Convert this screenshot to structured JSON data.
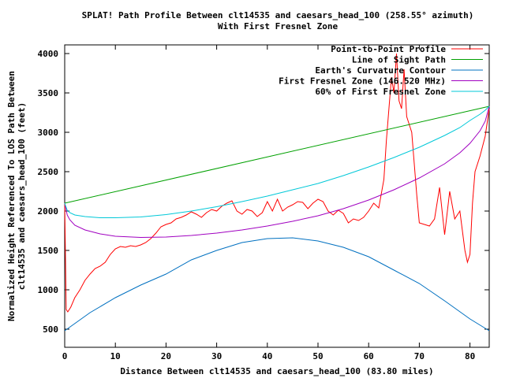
{
  "chart_data": {
    "type": "line",
    "title": "SPLAT! Path Profile Between clt14535 and caesars_head_100 (258.55° azimuth)",
    "subtitle": "With First Fresnel Zone",
    "xlabel": "Distance Between clt14535 and caesars_head_100 (83.80 miles)",
    "ylabel_line1": "Normalized Height Referenced To LOS Path Between",
    "ylabel_line2": "clt14535 and caesars_head_100 (feet)",
    "xlim": [
      0,
      83.8
    ],
    "ylim": [
      270,
      4110
    ],
    "xticks": [
      0,
      10,
      20,
      30,
      40,
      50,
      60,
      70,
      80
    ],
    "yticks": [
      500,
      1000,
      1500,
      2000,
      2500,
      3000,
      3500,
      4000
    ],
    "grid": false,
    "legend_position": "top-right",
    "series": [
      {
        "name": "Point-to-Point Profile",
        "color": "#ff0000",
        "x": [
          0,
          0.3,
          0.6,
          1.2,
          2,
          3,
          4,
          5,
          6,
          7,
          8,
          9,
          10,
          11,
          12,
          13,
          14,
          15,
          16,
          17,
          18,
          19,
          20,
          21,
          22,
          23,
          24,
          25,
          26,
          27,
          28,
          29,
          30,
          31,
          32,
          33,
          34,
          35,
          36,
          37,
          38,
          39,
          40,
          41,
          42,
          43,
          44,
          45,
          46,
          47,
          48,
          49,
          50,
          51,
          52,
          53,
          54,
          55,
          56,
          57,
          58,
          59,
          60,
          61,
          62,
          63,
          63.5,
          64,
          64.5,
          65,
          65.5,
          66,
          66.5,
          67,
          67.5,
          68,
          68.5,
          69,
          69.5,
          70,
          71,
          72,
          73,
          74,
          75,
          76,
          77,
          78,
          79,
          79.5,
          80,
          80.5,
          81,
          82,
          83,
          83.8
        ],
        "y": [
          2100,
          750,
          720,
          780,
          900,
          1000,
          1120,
          1200,
          1270,
          1300,
          1350,
          1450,
          1520,
          1550,
          1540,
          1560,
          1550,
          1570,
          1600,
          1650,
          1720,
          1800,
          1830,
          1850,
          1900,
          1920,
          1950,
          1990,
          1960,
          1920,
          1980,
          2020,
          2000,
          2060,
          2100,
          2130,
          2000,
          1960,
          2020,
          2000,
          1930,
          1980,
          2120,
          2000,
          2150,
          2000,
          2050,
          2080,
          2120,
          2110,
          2030,
          2100,
          2150,
          2120,
          2000,
          1950,
          2010,
          1970,
          1850,
          1900,
          1880,
          1920,
          2000,
          2100,
          2040,
          2400,
          2900,
          3300,
          3700,
          3500,
          4000,
          3400,
          3300,
          3800,
          3200,
          3100,
          3000,
          2600,
          2200,
          1850,
          1830,
          1810,
          1900,
          2300,
          1700,
          2250,
          1900,
          2000,
          1500,
          1350,
          1450,
          2100,
          2500,
          2700,
          2950,
          3300
        ]
      },
      {
        "name": "Line of Sight Path",
        "color": "#00a000",
        "x": [
          0,
          83.8
        ],
        "y": [
          2100,
          3330
        ]
      },
      {
        "name": "Earth's Curvature Contour",
        "color": "#0070c0",
        "x": [
          0,
          5,
          10,
          15,
          20,
          25,
          30,
          35,
          40,
          45,
          50,
          55,
          60,
          65,
          70,
          75,
          80,
          83.8
        ],
        "y": [
          480,
          710,
          900,
          1060,
          1200,
          1380,
          1500,
          1600,
          1650,
          1660,
          1620,
          1540,
          1420,
          1250,
          1080,
          860,
          630,
          480
        ]
      },
      {
        "name": "First Fresnel Zone (146.520 MHz)",
        "color": "#a000c0",
        "x": [
          0,
          0.5,
          1,
          2,
          4,
          7,
          10,
          15,
          20,
          25,
          30,
          35,
          40,
          45,
          50,
          55,
          60,
          65,
          70,
          75,
          78,
          80,
          82,
          83,
          83.8
        ],
        "y": [
          2100,
          1950,
          1890,
          1820,
          1760,
          1710,
          1680,
          1665,
          1670,
          1690,
          1720,
          1760,
          1810,
          1870,
          1940,
          2030,
          2140,
          2270,
          2420,
          2600,
          2740,
          2860,
          3020,
          3140,
          3330
        ]
      },
      {
        "name": "60% of First Fresnel Zone",
        "color": "#00c8d8",
        "x": [
          0,
          0.5,
          1,
          2,
          4,
          7,
          10,
          15,
          20,
          25,
          30,
          35,
          40,
          45,
          50,
          55,
          60,
          65,
          70,
          75,
          78,
          80,
          82,
          83,
          83.8
        ],
        "y": [
          2100,
          2010,
          1980,
          1950,
          1930,
          1915,
          1915,
          1925,
          1955,
          2000,
          2055,
          2120,
          2190,
          2270,
          2350,
          2450,
          2560,
          2680,
          2810,
          2960,
          3060,
          3150,
          3230,
          3280,
          3330
        ]
      }
    ]
  }
}
